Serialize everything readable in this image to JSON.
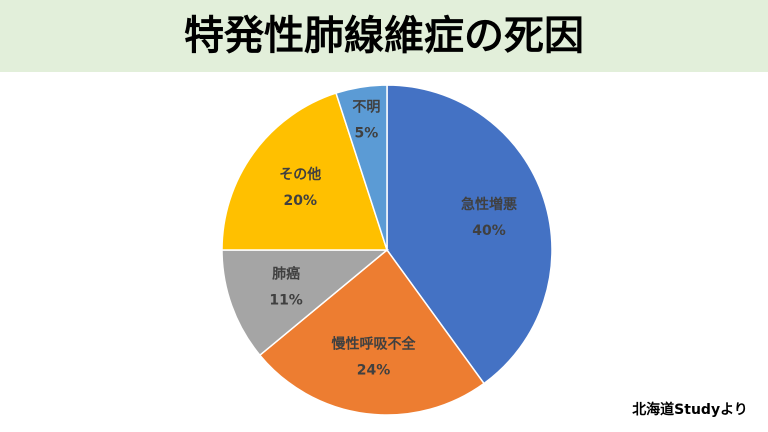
{
  "chart_data": {
    "type": "pie",
    "title": "特発性肺線維症の死因",
    "categories": [
      "急性増悪",
      "慢性呼吸不全",
      "肺癌",
      "その他",
      "不明"
    ],
    "values": [
      40,
      24,
      11,
      20,
      5
    ],
    "value_labels": [
      "40%",
      "24%",
      "11%",
      "20%",
      "5%"
    ],
    "colors": [
      "#4472c4",
      "#ed7d31",
      "#a5a5a5",
      "#ffc000",
      "#5b9bd5"
    ],
    "source": "北海道Studyより"
  }
}
